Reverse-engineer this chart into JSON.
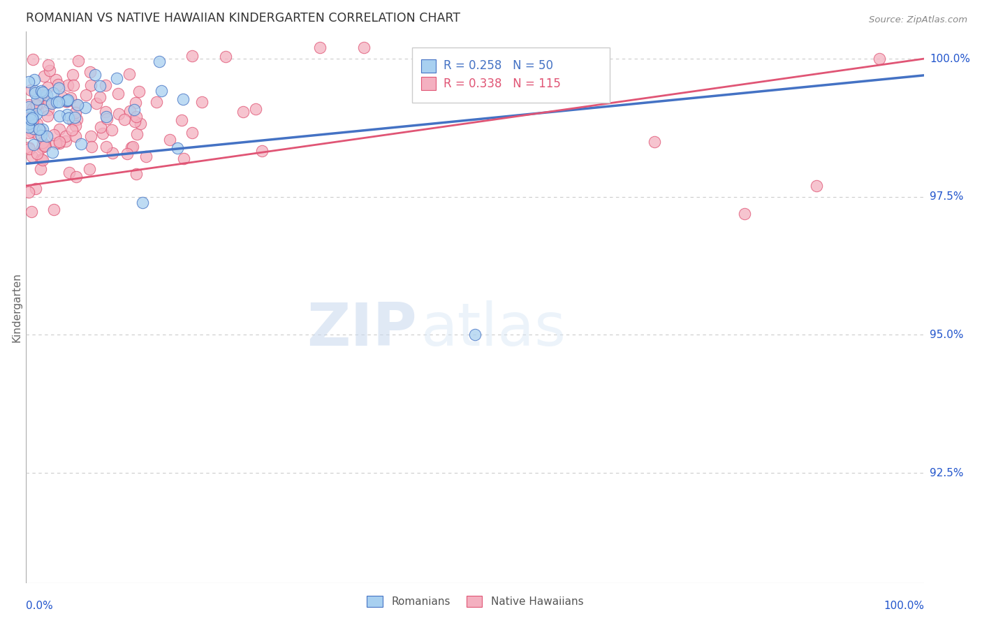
{
  "title": "ROMANIAN VS NATIVE HAWAIIAN KINDERGARTEN CORRELATION CHART",
  "source": "Source: ZipAtlas.com",
  "ylabel": "Kindergarten",
  "ytick_values": [
    1.0,
    0.975,
    0.95,
    0.925
  ],
  "xlim": [
    0.0,
    1.0
  ],
  "ylim": [
    0.905,
    1.005
  ],
  "romanian_R": 0.258,
  "romanian_N": 50,
  "hawaiian_R": 0.338,
  "hawaiian_N": 115,
  "romanian_color": "#a8d0f0",
  "hawaiian_color": "#f4b0c0",
  "trendline_romanian_color": "#4472c4",
  "trendline_hawaiian_color": "#e05575",
  "legend_label_romanian": "Romanians",
  "legend_label_hawaiian": "Native Hawaiians",
  "watermark_zip": "ZIP",
  "watermark_atlas": "atlas",
  "background_color": "#ffffff",
  "grid_color": "#cccccc",
  "title_color": "#333333",
  "axis_label_color": "#2255cc",
  "ro_trendline_x": [
    0.0,
    1.0
  ],
  "ro_trendline_y": [
    0.981,
    0.997
  ],
  "nh_trendline_x": [
    0.0,
    1.0
  ],
  "nh_trendline_y": [
    0.977,
    1.0
  ]
}
